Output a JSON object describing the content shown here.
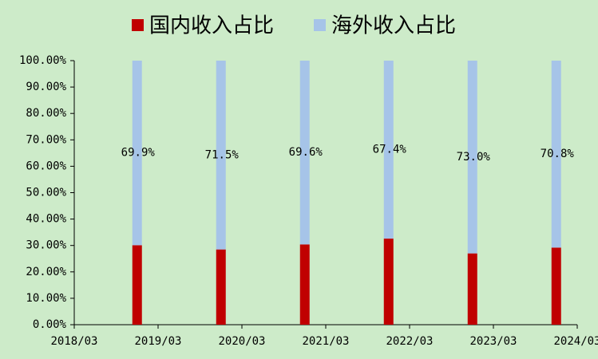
{
  "chart_data": {
    "type": "stacked_bar",
    "x": [
      "2018/12",
      "2019/12",
      "2020/12",
      "2021/12",
      "2022/12",
      "2023/12"
    ],
    "series": [
      {
        "name": "国内收入占比",
        "color": "#c00000",
        "values": [
          30.1,
          28.5,
          30.4,
          32.6,
          27.0,
          29.2
        ]
      },
      {
        "name": "海外收入占比",
        "color": "#a6c4e8",
        "values": [
          69.9,
          71.5,
          69.6,
          67.4,
          73.0,
          70.8
        ],
        "value_labels": [
          "69.9%",
          "71.5%",
          "69.6%",
          "67.4%",
          "73.0%",
          "70.8%"
        ]
      }
    ],
    "xlim": [
      "2018/03",
      "2024/03"
    ],
    "xticks": [
      "2018/03",
      "2019/03",
      "2020/03",
      "2021/03",
      "2022/03",
      "2023/03",
      "2024/03"
    ],
    "ylim": [
      0,
      100
    ],
    "yticks": [
      {
        "value": 0,
        "label": "0.00%"
      },
      {
        "value": 10,
        "label": "10.00%"
      },
      {
        "value": 20,
        "label": "20.00%"
      },
      {
        "value": 30,
        "label": "30.00%"
      },
      {
        "value": 40,
        "label": "40.00%"
      },
      {
        "value": 50,
        "label": "50.00%"
      },
      {
        "value": 60,
        "label": "60.00%"
      },
      {
        "value": 70,
        "label": "70.00%"
      },
      {
        "value": 80,
        "label": "80.00%"
      },
      {
        "value": 90,
        "label": "90.00%"
      },
      {
        "value": 100,
        "label": "100.00%"
      }
    ],
    "legend": "top"
  }
}
